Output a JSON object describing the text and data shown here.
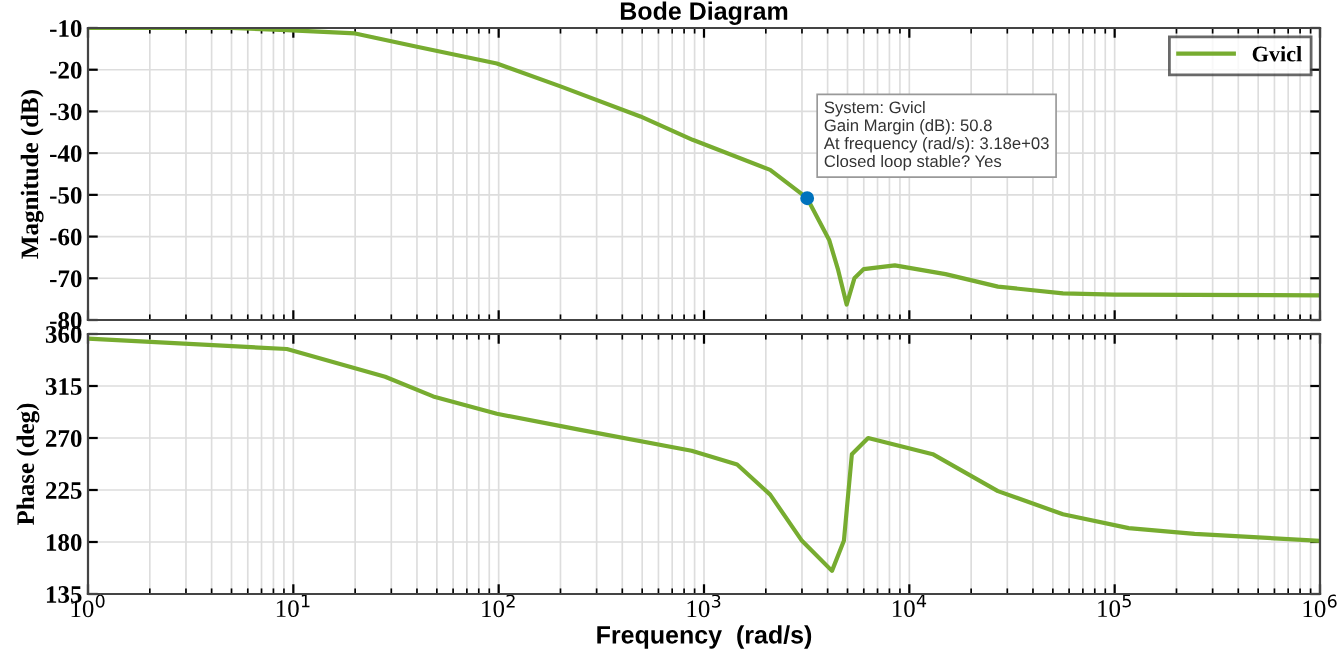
{
  "chart_data": [
    {
      "type": "line",
      "title": "Bode Diagram",
      "ylabel": "Magnitude (dB)",
      "log": "x",
      "grid": true,
      "legend": "top right",
      "tick_labels": "y",
      "xlim": [
        1,
        1000000
      ],
      "xticks": [
        {
          "value": 1,
          "label": null
        },
        {
          "value": 10,
          "label": null
        },
        {
          "value": 100,
          "label": null
        },
        {
          "value": 1000,
          "label": null
        },
        {
          "value": 10000,
          "label": null
        },
        {
          "value": 100000,
          "label": null
        },
        {
          "value": 1000000,
          "label": null
        }
      ],
      "ylim": [
        -80,
        -10
      ],
      "yticks": [
        -80,
        -70,
        -60,
        -50,
        -40,
        -30,
        -20,
        -10
      ],
      "annotations": [
        {
          "text": "System: Gvicl\nGain Margin (dB): 50.8\nAt frequency (rad/s): 3.18e+03\nClosed loop stable? Yes",
          "x": 3180,
          "y": -50.8
        }
      ],
      "series": [
        {
          "name": "Gvicl",
          "color": "#77ac30",
          "x": [
            1,
            5,
            9.3,
            20,
            40,
            98,
            200,
            490,
            880,
            2100,
            3180,
            4070,
            4500,
            4950,
            5400,
            6000,
            8500,
            15000,
            27000,
            56000,
            100000,
            1000000
          ],
          "values": [
            -10,
            -10,
            -10.5,
            -11.3,
            -14.5,
            -18.5,
            -24,
            -31.2,
            -36.8,
            -44,
            -50.8,
            -60.8,
            -68,
            -76.3,
            -70,
            -67.8,
            -66.9,
            -69,
            -72,
            -73.6,
            -73.9,
            -74.1
          ]
        }
      ]
    },
    {
      "type": "line",
      "xlabel": "Frequency  (rad/s)",
      "ylabel": "Phase (deg)",
      "log": "x",
      "grid": true,
      "xlim": [
        1,
        1000000
      ],
      "xticks": [
        {
          "value": 1,
          "label": "10$^{0}$"
        },
        {
          "value": 10,
          "label": "10$^{1}$"
        },
        {
          "value": 100,
          "label": "10$^{2}$"
        },
        {
          "value": 1000,
          "label": "10$^{3}$"
        },
        {
          "value": 10000,
          "label": "10$^{4}$"
        },
        {
          "value": 100000,
          "label": "10$^{5}$"
        },
        {
          "value": 1000000,
          "label": "10$^{6}$"
        }
      ],
      "ylim": [
        135,
        360
      ],
      "yticks": [
        135,
        180,
        225,
        270,
        315,
        360
      ],
      "series": [
        {
          "color": "#77ac30",
          "x": [
            1,
            9.3,
            28,
            48,
            98,
            250,
            870,
            1450,
            2100,
            3000,
            4200,
            4800,
            5250,
            6300,
            13000,
            27000,
            56000,
            117000,
            245000,
            1000000
          ],
          "values": [
            356,
            347,
            323,
            306,
            291,
            277,
            259,
            247,
            221,
            181,
            155,
            181,
            256,
            270,
            256,
            224,
            204,
            192,
            187,
            181
          ]
        }
      ]
    }
  ]
}
